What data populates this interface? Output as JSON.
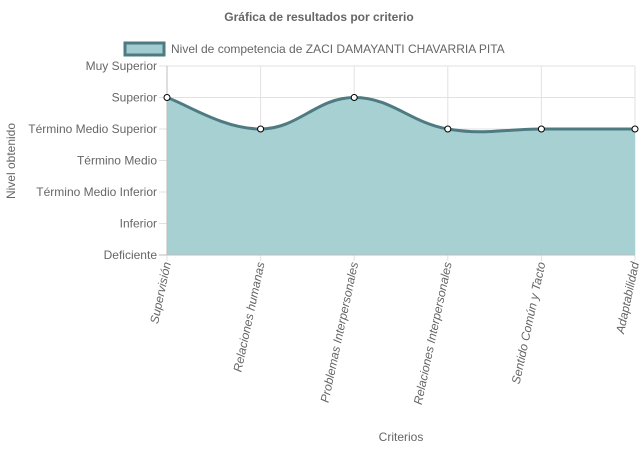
{
  "chart_data": {
    "type": "area",
    "title": "Gráfica de resultados por criterio",
    "xlabel": "Criterios",
    "ylabel": "Nivel obtenido",
    "categories": [
      "Supervisión",
      "Relaciones humanas",
      "Problemas Interpersonales",
      "Relaciones Interpersonales",
      "Sentido Común y Tacto",
      "Adaptabilidad"
    ],
    "y_levels": [
      "Deficiente",
      "Inferior",
      "Término Medio Inferior",
      "Término Medio",
      "Término Medio Superior",
      "Superior",
      "Muy Superior"
    ],
    "ylim": [
      0,
      6
    ],
    "grid": true,
    "legend_position": "top",
    "series": [
      {
        "name": "Nivel de competencia de ZACI DAMAYANTI CHAVARRIA PITA",
        "values": [
          5,
          4,
          5,
          4,
          4,
          4
        ],
        "fill_color": "#a2cdd0",
        "line_color": "#4e7b82"
      }
    ]
  }
}
